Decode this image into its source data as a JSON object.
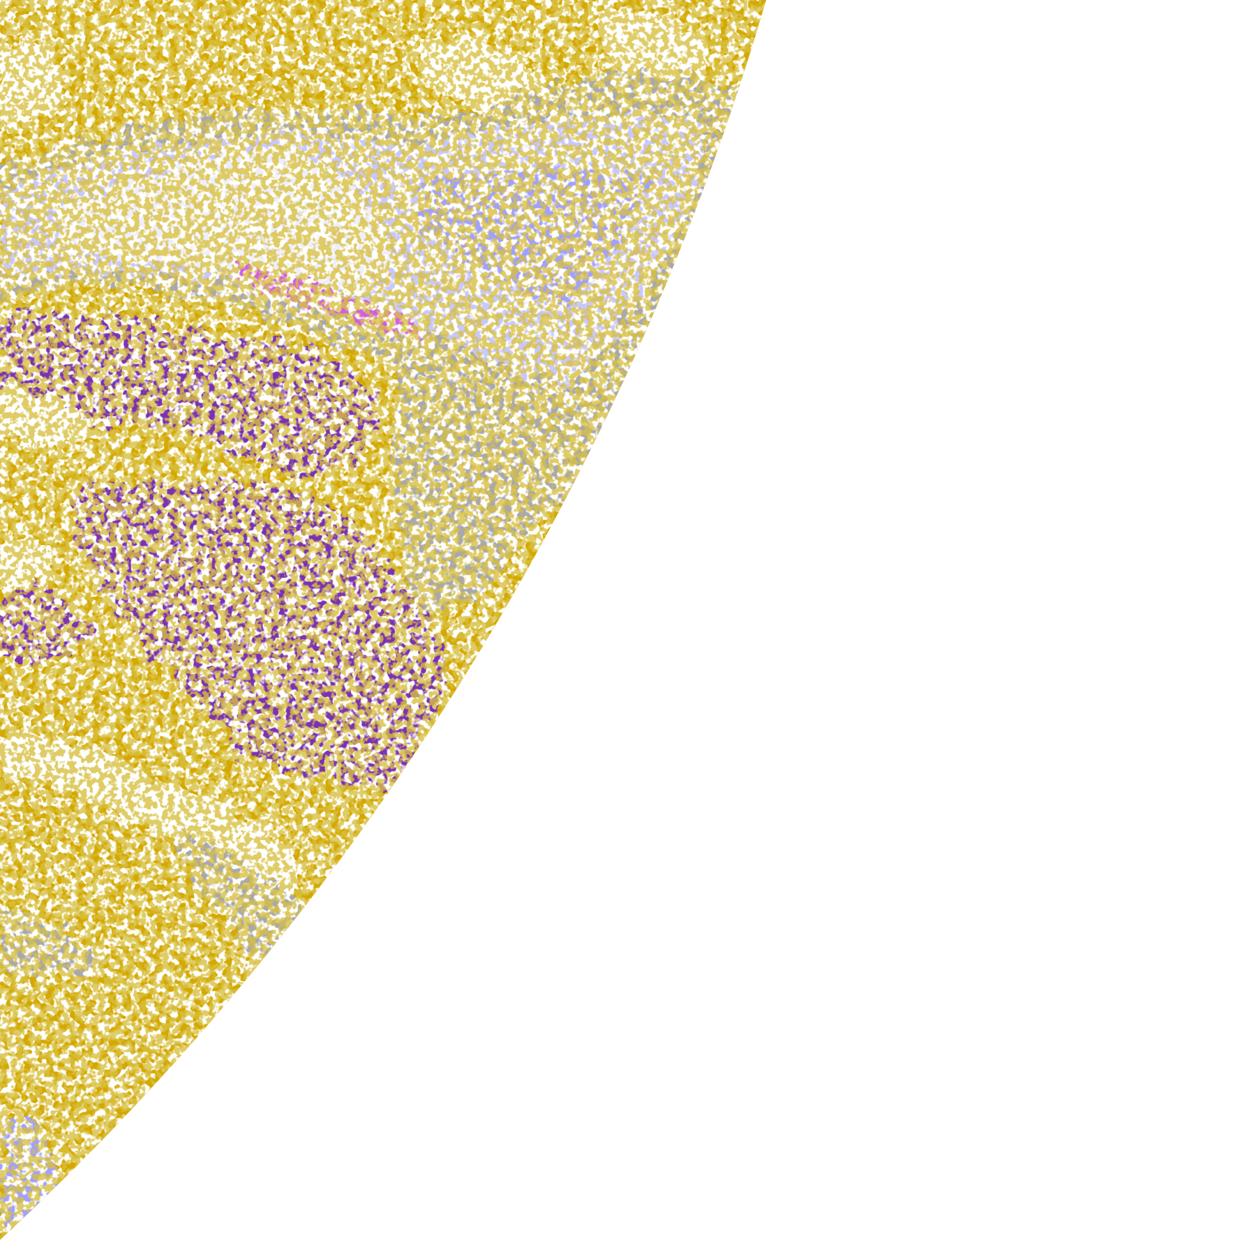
{
  "image": {
    "kind": "satellite cloud-type classification disk (partial)",
    "background": "#ffffff",
    "palette": {
      "gold": "#d4a800",
      "dark_gold": "#b0880c",
      "purple": "#7a33b2",
      "magenta": "#d05ee0",
      "lavender": "#c8c8ff",
      "periwinkle": "#a0a0ff",
      "grey": "#a8a8ac",
      "pale": "#eeeeff",
      "clear": "#ffffff"
    }
  }
}
